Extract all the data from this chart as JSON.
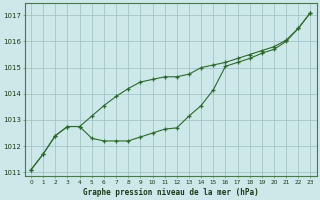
{
  "line1_y": [
    1011.1,
    1011.7,
    1012.4,
    1012.75,
    1012.75,
    1012.3,
    1012.2,
    1012.2,
    1012.2,
    1012.35,
    1012.5,
    1012.65,
    1012.7,
    1013.15,
    1013.55,
    1014.15,
    1015.05,
    1015.2,
    1015.35,
    1015.55,
    1015.7,
    1016.0,
    1016.5,
    1017.1
  ],
  "line2_y": [
    1011.1,
    1011.7,
    1012.4,
    1012.75,
    1012.75,
    1013.15,
    1013.55,
    1013.9,
    1014.2,
    1014.45,
    1014.55,
    1014.65,
    1014.65,
    1014.75,
    1015.0,
    1015.1,
    1015.2,
    1015.35,
    1015.5,
    1015.65,
    1015.8,
    1016.05,
    1016.5,
    1017.1
  ],
  "line_color": "#2d6a2d",
  "bg_color": "#cce8e8",
  "grid_color": "#9bbfbf",
  "xlabel": "Graphe pression niveau de la mer (hPa)",
  "ylim_min": 1010.85,
  "ylim_max": 1017.45,
  "xlim_min": -0.5,
  "xlim_max": 23.5,
  "yticks": [
    1011,
    1012,
    1013,
    1014,
    1015,
    1016,
    1017
  ],
  "xticks": [
    0,
    1,
    2,
    3,
    4,
    5,
    6,
    7,
    8,
    9,
    10,
    11,
    12,
    13,
    14,
    15,
    16,
    17,
    18,
    19,
    20,
    21,
    22,
    23
  ]
}
